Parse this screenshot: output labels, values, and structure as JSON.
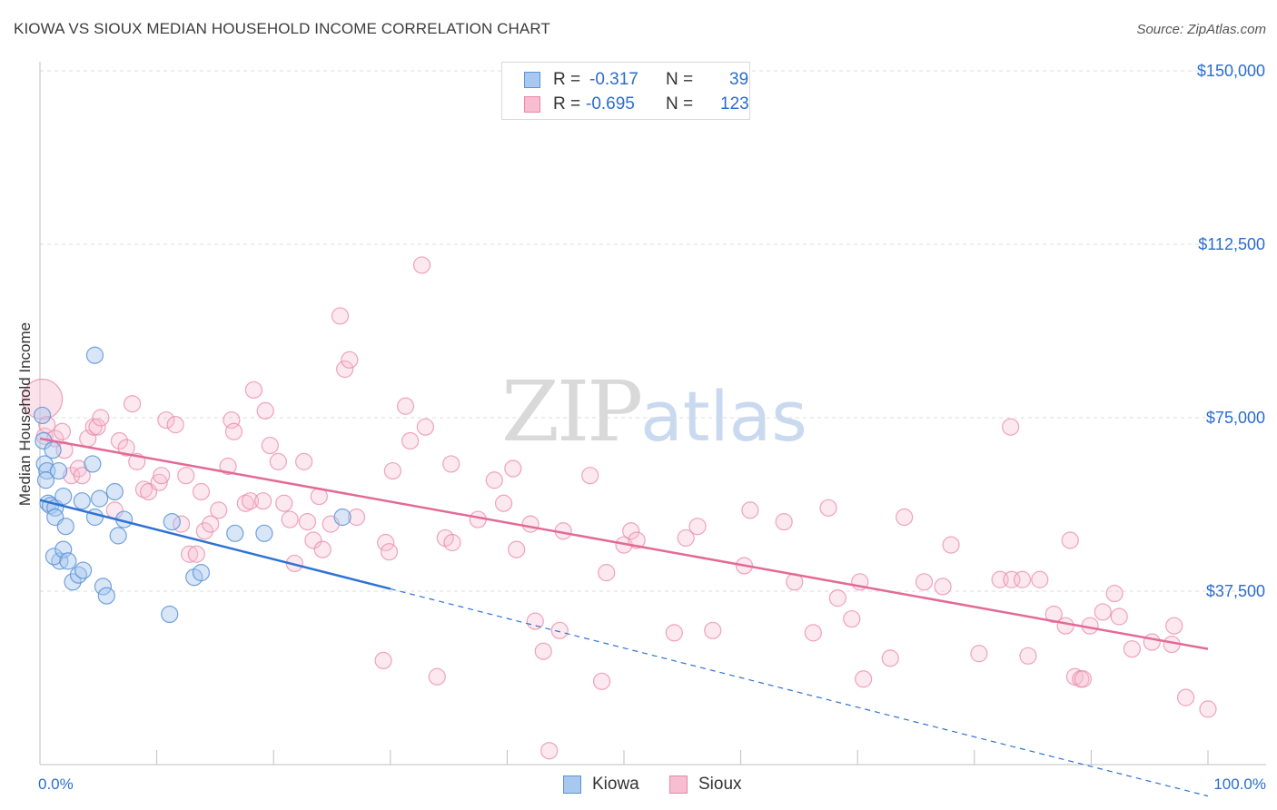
{
  "header": {
    "title": "KIOWA VS SIOUX MEDIAN HOUSEHOLD INCOME CORRELATION CHART",
    "source": "Source: ZipAtlas.com"
  },
  "legend": {
    "r_label": "R =",
    "n_label": "N =",
    "rows": [
      {
        "name": "Kiowa",
        "r": "-0.317",
        "n": "39"
      },
      {
        "name": "Sioux",
        "r": "-0.695",
        "n": "123"
      }
    ]
  },
  "watermark": {
    "zip": "ZIP",
    "atlas": "atlas"
  },
  "colors": {
    "kiowa_fill": "#a9c8f0",
    "kiowa_stroke": "#5b93d6",
    "kiowa_line": "#2f72d4",
    "sioux_fill": "#f6bed0",
    "sioux_stroke": "#ea87a8",
    "sioux_line": "#e46a96",
    "axis_text": "#2a6dd1",
    "grid": "#dcdcdc"
  },
  "chart_data": {
    "type": "scatter",
    "xlabel": "",
    "ylabel": "Median Household Income",
    "xlim": [
      0,
      100
    ],
    "ylim": [
      0,
      150000
    ],
    "x_tick_labels": [
      "0.0%",
      "100.0%"
    ],
    "y_ticks": [
      37500,
      75000,
      112500,
      150000
    ],
    "y_tick_labels": [
      "$37,500",
      "$75,000",
      "$112,500",
      "$150,000"
    ],
    "grid": "horizontal dashed",
    "legend_position": "top-center",
    "series": [
      {
        "name": "Kiowa",
        "trend": {
          "x0": 0,
          "y0": 57200,
          "x1": 30,
          "y1": 38000,
          "dashed_to_x": 100,
          "dashed_to_y": -6800
        },
        "points": [
          [
            0.2,
            75500
          ],
          [
            0.3,
            70000
          ],
          [
            0.4,
            65000
          ],
          [
            0.6,
            63500
          ],
          [
            0.5,
            61500
          ],
          [
            0.7,
            56500
          ],
          [
            0.9,
            56000
          ],
          [
            1.1,
            68000
          ],
          [
            1.3,
            55500
          ],
          [
            1.3,
            53500
          ],
          [
            1.6,
            63500
          ],
          [
            1.7,
            44000
          ],
          [
            1.2,
            45000
          ],
          [
            2.0,
            58000
          ],
          [
            2.2,
            51500
          ],
          [
            2.0,
            46500
          ],
          [
            2.4,
            44000
          ],
          [
            2.8,
            39500
          ],
          [
            3.3,
            41000
          ],
          [
            3.7,
            42000
          ],
          [
            3.6,
            57000
          ],
          [
            4.5,
            65000
          ],
          [
            4.7,
            53500
          ],
          [
            5.1,
            57500
          ],
          [
            4.7,
            88500
          ],
          [
            5.4,
            38500
          ],
          [
            5.7,
            36500
          ],
          [
            6.4,
            59000
          ],
          [
            6.7,
            49500
          ],
          [
            7.2,
            53000
          ],
          [
            11.3,
            52500
          ],
          [
            11.1,
            32500
          ],
          [
            13.2,
            40500
          ],
          [
            13.8,
            41500
          ],
          [
            16.7,
            50000
          ],
          [
            19.2,
            50000
          ],
          [
            25.9,
            53500
          ]
        ]
      },
      {
        "name": "Sioux",
        "trend": {
          "x0": 0,
          "y0": 70500,
          "x1": 100,
          "y1": 25000
        },
        "points": [
          [
            0.2,
            79000
          ],
          [
            0.4,
            71000
          ],
          [
            0.6,
            73500
          ],
          [
            1.3,
            70500
          ],
          [
            1.9,
            72000
          ],
          [
            2.1,
            68000
          ],
          [
            2.7,
            62500
          ],
          [
            3.3,
            64000
          ],
          [
            3.6,
            62500
          ],
          [
            4.1,
            70500
          ],
          [
            4.6,
            73000
          ],
          [
            4.9,
            73000
          ],
          [
            5.2,
            75000
          ],
          [
            6.4,
            55000
          ],
          [
            6.8,
            70000
          ],
          [
            7.4,
            68500
          ],
          [
            7.9,
            78000
          ],
          [
            8.3,
            65500
          ],
          [
            8.9,
            59500
          ],
          [
            9.3,
            59000
          ],
          [
            10.2,
            61000
          ],
          [
            10.4,
            62500
          ],
          [
            10.8,
            74500
          ],
          [
            11.6,
            73500
          ],
          [
            12.1,
            52000
          ],
          [
            12.5,
            62500
          ],
          [
            12.8,
            45500
          ],
          [
            13.4,
            45500
          ],
          [
            13.8,
            59000
          ],
          [
            14.1,
            50500
          ],
          [
            14.6,
            52000
          ],
          [
            15.3,
            55000
          ],
          [
            16.1,
            64500
          ],
          [
            16.4,
            74500
          ],
          [
            16.6,
            72000
          ],
          [
            17.6,
            56500
          ],
          [
            18.0,
            57000
          ],
          [
            18.3,
            81000
          ],
          [
            19.1,
            57000
          ],
          [
            19.3,
            76500
          ],
          [
            19.7,
            69000
          ],
          [
            20.4,
            65500
          ],
          [
            20.9,
            56500
          ],
          [
            21.4,
            53000
          ],
          [
            21.8,
            43500
          ],
          [
            22.6,
            65500
          ],
          [
            22.9,
            52500
          ],
          [
            23.4,
            48500
          ],
          [
            23.9,
            58000
          ],
          [
            24.2,
            46500
          ],
          [
            24.9,
            52000
          ],
          [
            25.7,
            97000
          ],
          [
            26.1,
            85500
          ],
          [
            26.5,
            87500
          ],
          [
            27.1,
            53500
          ],
          [
            29.4,
            22500
          ],
          [
            29.6,
            48000
          ],
          [
            29.9,
            46000
          ],
          [
            30.2,
            63500
          ],
          [
            31.3,
            77500
          ],
          [
            31.7,
            70000
          ],
          [
            32.7,
            108000
          ],
          [
            33.0,
            73000
          ],
          [
            34.0,
            19000
          ],
          [
            34.7,
            49000
          ],
          [
            35.3,
            48000
          ],
          [
            35.2,
            65000
          ],
          [
            37.5,
            53000
          ],
          [
            38.9,
            61500
          ],
          [
            39.7,
            56500
          ],
          [
            40.5,
            64000
          ],
          [
            40.8,
            46500
          ],
          [
            42.0,
            52000
          ],
          [
            42.4,
            31000
          ],
          [
            43.1,
            24500
          ],
          [
            43.6,
            3000
          ],
          [
            44.5,
            29000
          ],
          [
            44.8,
            50500
          ],
          [
            47.1,
            62500
          ],
          [
            48.1,
            18000
          ],
          [
            48.5,
            41500
          ],
          [
            50.0,
            47500
          ],
          [
            50.6,
            50500
          ],
          [
            51.1,
            48500
          ],
          [
            54.3,
            28500
          ],
          [
            55.3,
            49000
          ],
          [
            56.3,
            51500
          ],
          [
            57.6,
            29000
          ],
          [
            60.3,
            43000
          ],
          [
            60.8,
            55000
          ],
          [
            63.7,
            52500
          ],
          [
            64.6,
            39500
          ],
          [
            66.2,
            28500
          ],
          [
            67.5,
            55500
          ],
          [
            68.3,
            36000
          ],
          [
            69.5,
            31500
          ],
          [
            70.2,
            39500
          ],
          [
            70.5,
            18500
          ],
          [
            72.8,
            23000
          ],
          [
            74.0,
            53500
          ],
          [
            75.7,
            39500
          ],
          [
            77.3,
            38500
          ],
          [
            78.0,
            47500
          ],
          [
            80.4,
            24000
          ],
          [
            82.2,
            40000
          ],
          [
            83.1,
            73000
          ],
          [
            83.2,
            40000
          ],
          [
            84.1,
            40000
          ],
          [
            84.6,
            23500
          ],
          [
            85.6,
            40000
          ],
          [
            86.8,
            32500
          ],
          [
            87.8,
            30000
          ],
          [
            88.2,
            48500
          ],
          [
            88.6,
            19000
          ],
          [
            89.1,
            18500
          ],
          [
            89.3,
            18500
          ],
          [
            89.9,
            30000
          ],
          [
            91.0,
            33000
          ],
          [
            92.0,
            37000
          ],
          [
            92.4,
            32000
          ],
          [
            93.5,
            25000
          ],
          [
            95.2,
            26500
          ],
          [
            96.9,
            26000
          ],
          [
            97.1,
            30000
          ],
          [
            98.1,
            14500
          ],
          [
            100.0,
            12000
          ]
        ]
      }
    ]
  }
}
